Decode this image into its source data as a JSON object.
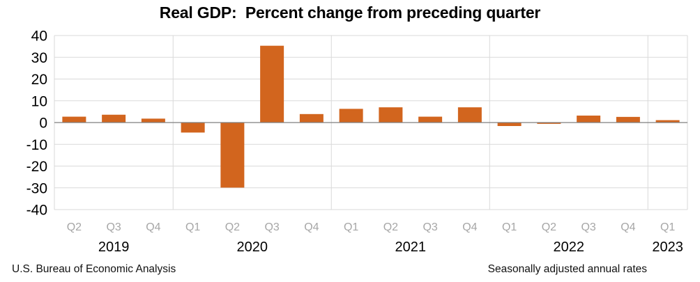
{
  "title": "Real GDP:  Percent change from preceding quarter",
  "footer": {
    "left": "U.S. Bureau of Economic Analysis",
    "right": "Seasonally adjusted annual rates"
  },
  "colors": {
    "bar": "#D2651E",
    "gridline": "#D9D9D9",
    "zero_line": "#7F7F7F",
    "year_separator": "#D9D9D9",
    "quarter_label": "#A6A6A6",
    "year_label": "#000000",
    "ytick_label": "#000000"
  },
  "chart_data": {
    "type": "bar",
    "title": "Real GDP:  Percent change from preceding quarter",
    "categories": [
      "2019 Q2",
      "2019 Q3",
      "2019 Q4",
      "2020 Q1",
      "2020 Q2",
      "2020 Q3",
      "2020 Q4",
      "2021 Q1",
      "2021 Q2",
      "2021 Q3",
      "2021 Q4",
      "2022 Q1",
      "2022 Q2",
      "2022 Q3",
      "2022 Q4",
      "2023 Q1"
    ],
    "quarter_labels": [
      "Q2",
      "Q3",
      "Q4",
      "Q1",
      "Q2",
      "Q3",
      "Q4",
      "Q1",
      "Q2",
      "Q3",
      "Q4",
      "Q1",
      "Q2",
      "Q3",
      "Q4",
      "Q1"
    ],
    "year_groups": [
      {
        "label": "2019",
        "count": 3
      },
      {
        "label": "2020",
        "count": 4
      },
      {
        "label": "2021",
        "count": 4
      },
      {
        "label": "2022",
        "count": 4
      },
      {
        "label": "2023",
        "count": 1
      }
    ],
    "values": [
      2.7,
      3.6,
      1.8,
      -4.6,
      -29.9,
      35.3,
      3.9,
      6.3,
      7.0,
      2.7,
      7.0,
      -1.6,
      -0.6,
      3.2,
      2.6,
      1.1
    ],
    "xlabel": "",
    "ylabel": "",
    "ylim": [
      -40,
      40
    ],
    "yticks": [
      40,
      30,
      20,
      10,
      0,
      -10,
      -20,
      -30,
      -40
    ],
    "grid": true,
    "legend": false
  }
}
